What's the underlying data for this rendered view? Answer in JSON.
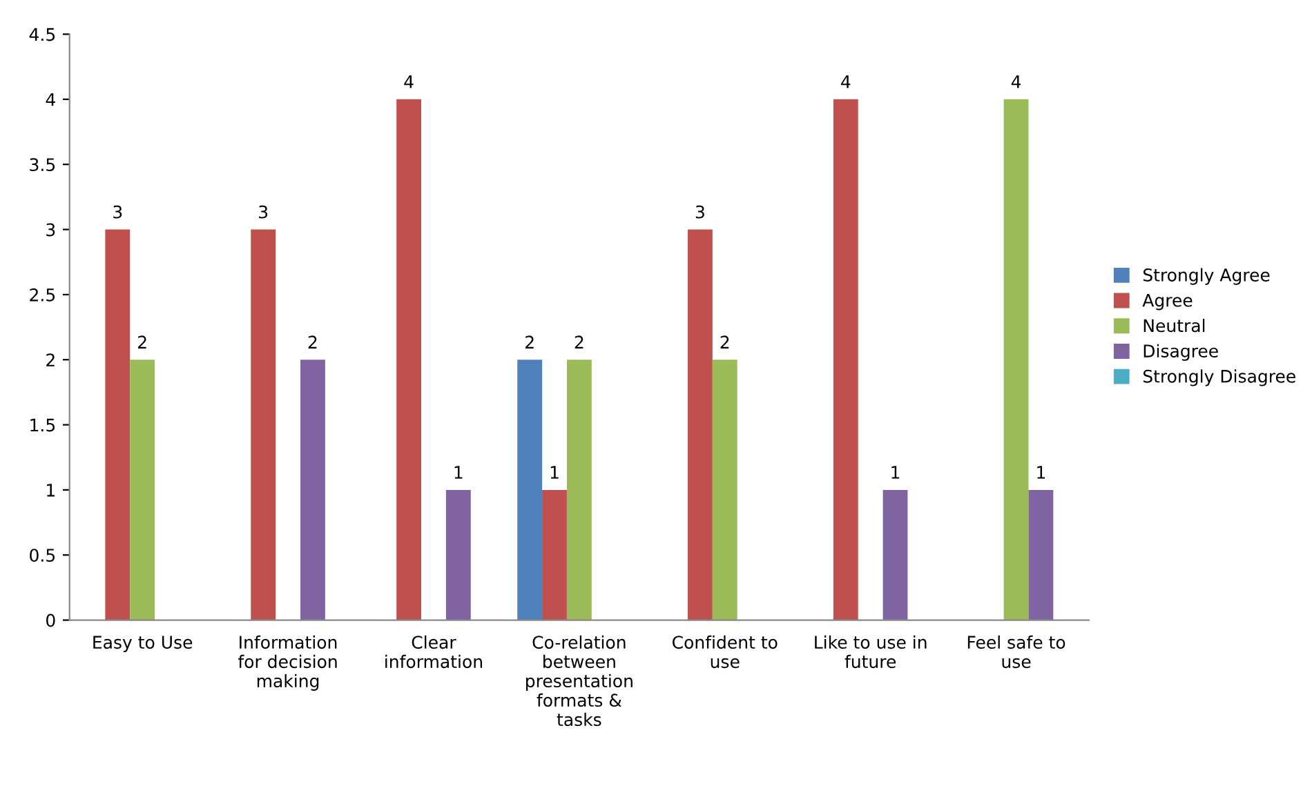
{
  "chart_data": {
    "type": "bar",
    "categories": [
      "Easy to Use",
      "Information\nfor decision\nmaking",
      "Clear\ninformation",
      "Co-relation\nbetween\npresentation\nformats &\ntasks",
      "Confident to\nuse",
      "Like to use in\nfuture",
      "Feel safe to\nuse"
    ],
    "series": [
      {
        "name": "Strongly Agree",
        "color": "#4f81bd",
        "values": [
          null,
          null,
          null,
          2,
          null,
          null,
          null
        ]
      },
      {
        "name": "Agree",
        "color": "#c0504d",
        "values": [
          3,
          3,
          4,
          1,
          3,
          4,
          null
        ]
      },
      {
        "name": "Neutral",
        "color": "#9bbb59",
        "values": [
          2,
          null,
          null,
          2,
          2,
          null,
          4
        ]
      },
      {
        "name": "Disagree",
        "color": "#8064a2",
        "values": [
          null,
          2,
          1,
          null,
          null,
          1,
          1
        ]
      },
      {
        "name": "Strongly Disagree",
        "color": "#4bacc6",
        "values": [
          null,
          null,
          null,
          null,
          null,
          null,
          null
        ]
      }
    ],
    "ylim": [
      0,
      4.5
    ],
    "yticks": [
      0,
      0.5,
      1,
      1.5,
      2,
      2.5,
      3,
      3.5,
      4,
      4.5
    ],
    "data_labels": true,
    "grid": false,
    "legend": "right"
  }
}
